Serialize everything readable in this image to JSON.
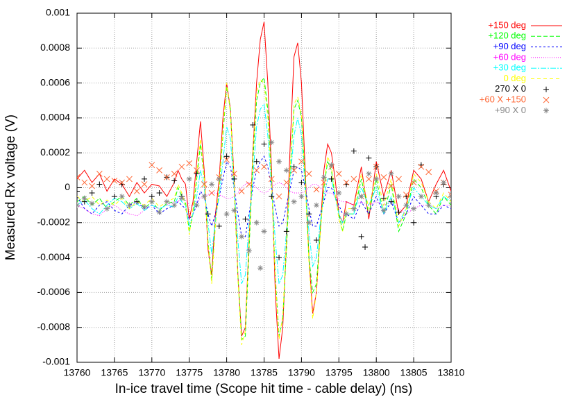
{
  "chart_data": {
    "type": "line",
    "x_label": "In-ice travel time (Scope hit time - cable delay) (ns)",
    "y_label": "Measured Rx voltage (V)",
    "xlim": [
      13760,
      13810
    ],
    "ylim": [
      -0.001,
      0.001
    ],
    "xticks": [
      13760,
      13765,
      13770,
      13775,
      13780,
      13785,
      13790,
      13795,
      13800,
      13805,
      13810
    ],
    "yticks": [
      -0.001,
      -0.0008,
      -0.0006,
      -0.0004,
      -0.0002,
      0,
      0.0002,
      0.0004,
      0.0006,
      0.0008,
      0.001
    ],
    "grid": true,
    "legend": "top-right",
    "x": [
      13760,
      13761,
      13762,
      13763,
      13764,
      13765,
      13766,
      13767,
      13768,
      13769,
      13770,
      13771,
      13772,
      13773,
      13773.5,
      13774,
      13774.5,
      13775,
      13775.5,
      13776,
      13776.5,
      13777,
      13777.5,
      13778,
      13778.5,
      13779,
      13779.5,
      13780,
      13780.5,
      13781,
      13781.5,
      13782,
      13782.5,
      13783,
      13783.5,
      13784,
      13784.5,
      13785,
      13785.5,
      13786,
      13786.5,
      13787,
      13787.5,
      13788,
      13788.5,
      13789,
      13789.5,
      13790,
      13790.5,
      13791,
      13791.5,
      13792,
      13792.5,
      13793,
      13793.5,
      13794,
      13794.5,
      13795,
      13795.5,
      13796,
      13797,
      13798,
      13799,
      13800,
      13801,
      13802,
      13803,
      13804,
      13805,
      13806,
      13807,
      13808,
      13809,
      13810
    ],
    "series": [
      {
        "name": "+150 deg",
        "color": "#ff0000",
        "dash": "none",
        "values": [
          5e-05,
          0.0001,
          3e-05,
          8e-05,
          -2e-05,
          5e-05,
          2e-05,
          -5e-05,
          3e-05,
          -3e-05,
          2e-05,
          1e-05,
          -5e-05,
          3e-05,
          0.0001,
          5e-05,
          2e-05,
          -0.00018,
          -8e-05,
          0.00015,
          0.00038,
          0.0001,
          -0.00035,
          -0.0005,
          -0.00015,
          5e-05,
          0.0004,
          0.0006,
          0.00045,
          5e-05,
          -0.0005,
          -0.00085,
          -0.0008,
          -0.0003,
          0.0002,
          0.0006,
          0.00085,
          0.00095,
          0.0006,
          0.0001,
          -0.0006,
          -0.00098,
          -0.0008,
          -0.0003,
          0.00025,
          0.00075,
          0.00083,
          0.0006,
          0.0001,
          -0.0004,
          -0.00072,
          -0.0006,
          -0.00025,
          0.0001,
          0.00025,
          0.0002,
          5e-05,
          -0.00015,
          -0.0002,
          -8e-05,
          -0.0001,
          0.00012,
          -0.00018,
          0.00015,
          -5e-05,
          0.0001,
          -0.00015,
          -0.0001,
          0.0001,
          5e-05,
          -8e-05,
          2e-05,
          0.0001,
          -2e-05
        ]
      },
      {
        "name": "+120 deg",
        "color": "#00ff00",
        "dash": "6,3",
        "values": [
          -8e-05,
          -5e-05,
          -0.0001,
          -6e-05,
          -0.00012,
          -8e-05,
          -5e-05,
          -0.0001,
          -6e-05,
          -0.00012,
          -8e-05,
          -0.00013,
          -9e-05,
          -8e-05,
          0,
          -5e-05,
          -8e-05,
          -0.00025,
          -0.00015,
          5e-05,
          0.00025,
          5e-05,
          -0.0003,
          -0.00053,
          -0.0002,
          0,
          0.0003,
          0.00058,
          0.00045,
          0,
          -0.0005,
          -0.00087,
          -0.00085,
          -0.00035,
          0.00015,
          0.0005,
          0.0006,
          0.00063,
          0.00045,
          5e-05,
          -0.0005,
          -0.00085,
          -0.00075,
          -0.00035,
          0.0001,
          0.00045,
          0.0005,
          0.0004,
          5e-05,
          -0.0004,
          -0.0006,
          -0.00055,
          -0.00025,
          0,
          0.00015,
          0.0001,
          -5e-05,
          -0.00015,
          -0.00025,
          -0.00015,
          -0.00015,
          5e-05,
          -0.00015,
          5e-05,
          -0.00015,
          2e-05,
          -0.00025,
          -0.00015,
          5e-05,
          0,
          -0.0001,
          -0.00015,
          -5e-05,
          -0.0001
        ]
      },
      {
        "name": "+90 deg",
        "color": "#0000ff",
        "dash": "3,3",
        "values": [
          -5e-05,
          -0.00012,
          -0.00015,
          -0.0001,
          -8e-05,
          -0.00013,
          -0.00015,
          -0.0001,
          -8e-05,
          -0.00012,
          -0.0001,
          -0.00015,
          -0.00012,
          -0.0001,
          -8e-05,
          -0.0001,
          -0.00012,
          -0.00018,
          -0.00015,
          -0.0001,
          -2e-05,
          -5e-05,
          -0.00015,
          -0.00022,
          -0.00015,
          -5e-05,
          5e-05,
          0.00015,
          0.00012,
          0,
          -0.00015,
          -0.00028,
          -0.00028,
          -0.00015,
          0,
          0.0001,
          0.00015,
          0.00018,
          0.00012,
          0,
          -0.00012,
          -0.00022,
          -0.0002,
          -0.0001,
          0,
          0.0001,
          0.00012,
          0.0001,
          0,
          -0.00012,
          -0.00022,
          -0.00022,
          -0.00015,
          -8e-05,
          0,
          0,
          -5e-05,
          -0.0001,
          -0.00015,
          -0.00015,
          -0.00018,
          -8e-05,
          -0.00015,
          -5e-05,
          -0.00015,
          -8e-05,
          -0.0002,
          -0.00015,
          -5e-05,
          -0.0001,
          -0.00015,
          -0.00015,
          -0.0001,
          -0.00012
        ]
      },
      {
        "name": "+60 deg",
        "color": "#ff00ff",
        "dash": "1,2",
        "values": [
          -0.0001,
          -0.00012,
          -0.00015,
          -0.00016,
          -0.00012,
          -0.0001,
          -0.00013,
          -0.00015,
          -0.00016,
          -0.00013,
          -0.0001,
          -0.00012,
          -0.0001,
          -8e-05,
          -8e-05,
          -5e-05,
          -7e-05,
          -0.0001,
          -0.0001,
          -8e-05,
          -6e-05,
          -5e-05,
          -4e-05,
          -3e-05,
          -3e-05,
          -4e-05,
          -5e-05,
          -6e-05,
          -6e-05,
          -5e-05,
          -3e-05,
          0,
          2e-05,
          3e-05,
          2e-05,
          0,
          -2e-05,
          -3e-05,
          -2e-05,
          0,
          2e-05,
          3e-05,
          2e-05,
          0,
          -2e-05,
          -3e-05,
          -3e-05,
          -3e-05,
          -2e-05,
          0,
          2e-05,
          2e-05,
          0,
          -2e-05,
          -3e-05,
          -3e-05,
          -5e-05,
          -7e-05,
          -8e-05,
          -8e-05,
          -0.0001,
          -8e-05,
          -0.0001,
          -8e-05,
          -0.0001,
          -8e-05,
          -0.00012,
          -0.00015,
          -0.00012,
          -0.0001,
          -0.0001,
          -0.00012,
          -0.0001,
          -0.0001
        ]
      },
      {
        "name": "+30 deg",
        "color": "#00ffff",
        "dash": "8,2,2,2",
        "values": [
          -0.0001,
          -7e-05,
          -0.00012,
          -0.00015,
          -0.0001,
          -6e-05,
          -8e-05,
          -0.00012,
          -9e-05,
          -0.00013,
          -0.0001,
          -0.00012,
          -0.0001,
          -0.00011,
          -5e-05,
          -8e-05,
          -0.0001,
          -0.00022,
          -0.00015,
          -5e-05,
          0.0001,
          0,
          -0.0002,
          -0.00038,
          -0.00018,
          -5e-05,
          0.00015,
          0.00035,
          0.00028,
          0,
          -0.0003,
          -0.00055,
          -0.0005,
          -0.0002,
          5e-05,
          0.00035,
          0.00045,
          0.00048,
          0.0003,
          0,
          -0.0003,
          -0.00055,
          -0.0005,
          -0.00025,
          5e-05,
          0.0003,
          0.0004,
          0.0003,
          0,
          -0.00025,
          -0.00045,
          -0.0004,
          -0.0002,
          -5e-05,
          5e-05,
          5e-05,
          -5e-05,
          -0.00015,
          -0.0002,
          -0.00015,
          -0.00015,
          0,
          -0.0001,
          0,
          -0.00015,
          -5e-05,
          -0.0002,
          -0.00012,
          0,
          -5e-05,
          -0.0001,
          -0.00012,
          -5e-05,
          -8e-05
        ]
      },
      {
        "name": "0 deg",
        "color": "#ffff00",
        "dash": "5,4",
        "values": [
          -5e-05,
          -8e-05,
          -5e-05,
          -0.0001,
          -7e-05,
          -0.0001,
          -6e-05,
          -0.00012,
          -8e-05,
          -0.0001,
          -6e-05,
          -0.00011,
          -8e-05,
          -6e-05,
          2e-05,
          -3e-05,
          -0.0001,
          -0.00027,
          -0.00012,
          8e-05,
          0.00028,
          6e-05,
          -0.00032,
          -0.00055,
          -0.00022,
          2e-05,
          0.00033,
          0.0006,
          0.00043,
          2e-05,
          -0.00052,
          -0.0009,
          -0.00082,
          -0.00032,
          0.00018,
          0.00055,
          0.00062,
          0.0006,
          0.0004,
          3e-05,
          -0.00052,
          -0.00087,
          -0.00073,
          -0.0003,
          0.00012,
          0.00048,
          0.00052,
          0.00042,
          3e-05,
          -0.00043,
          -0.00075,
          -0.0006,
          -0.00028,
          2e-05,
          0.00018,
          0.00012,
          -3e-05,
          -0.00018,
          -0.00025,
          -0.00012,
          -0.00012,
          8e-05,
          -0.00012,
          8e-05,
          -0.0001,
          5e-05,
          -0.00022,
          -0.00012,
          8e-05,
          3e-05,
          -8e-05,
          -0.00012,
          -3e-05,
          -8e-05
        ]
      },
      {
        "name": "270 X 0",
        "color": "#000000",
        "type": "scatter",
        "marker": "+",
        "x": [
          13760,
          13761,
          13762,
          13763,
          13765,
          13766,
          13768,
          13769,
          13770,
          13771,
          13772,
          13773,
          13774,
          13776,
          13777.5,
          13779,
          13780,
          13781,
          13782.5,
          13783.5,
          13784,
          13785,
          13786,
          13787,
          13788,
          13789,
          13790,
          13791,
          13792,
          13794,
          13796,
          13797,
          13798,
          13798.5,
          13799,
          13800,
          13801,
          13802,
          13803,
          13804,
          13805,
          13806,
          13808,
          13809
        ],
        "values": [
          -2e-05,
          -8e-05,
          -3e-05,
          2e-05,
          -5e-05,
          2e-05,
          -8e-05,
          5e-05,
          -5e-05,
          -3e-05,
          6e-05,
          4e-05,
          -5e-05,
          8e-05,
          -0.00015,
          -0.00022,
          0.00018,
          5e-05,
          -0.00018,
          0.00036,
          0.00015,
          0.00025,
          -5e-05,
          -0.0004,
          -0.00025,
          0.00012,
          3e-05,
          -0.00015,
          -0.0003,
          5e-05,
          2e-05,
          0.00021,
          -0.00028,
          -0.00034,
          0.00017,
          0.00012,
          -6e-05,
          -8e-05,
          -0.00014,
          -5e-05,
          -0.0002,
          0.00013,
          -5e-05,
          2e-05
        ]
      },
      {
        "name": "+60 X +150",
        "color": "#ff6633",
        "type": "scatter",
        "marker": "x",
        "x": [
          13760,
          13761,
          13762,
          13763,
          13764,
          13765,
          13766,
          13767,
          13768,
          13769,
          13770,
          13771,
          13772,
          13773,
          13774,
          13775,
          13776,
          13777,
          13778,
          13779,
          13780,
          13781,
          13782,
          13783,
          13784,
          13785,
          13786,
          13787,
          13788,
          13789,
          13790,
          13791,
          13792,
          13793,
          13794,
          13795,
          13796,
          13797,
          13798,
          13799,
          13800,
          13801,
          13802,
          13803,
          13804,
          13805,
          13806,
          13807,
          13808,
          13809,
          13810
        ],
        "values": [
          6e-05,
          3e-05,
          1e-05,
          8e-05,
          5e-05,
          4e-05,
          3e-05,
          5e-05,
          -2e-05,
          2e-05,
          0.00013,
          0.0001,
          6e-05,
          8e-05,
          0.00012,
          0.00014,
          0.0001,
          2e-05,
          -3e-05,
          6e-05,
          0.00016,
          8e-05,
          -2e-05,
          2e-05,
          0.0001,
          0.00012,
          5e-05,
          -5e-05,
          3e-05,
          0.0001,
          0.00015,
          8e-05,
          -1e-05,
          3e-05,
          0.00012,
          8e-05,
          3e-05,
          5e-05,
          -5e-05,
          5e-05,
          0.00012,
          6e-05,
          1e-05,
          5e-05,
          -4e-05,
          3e-05,
          0.00012,
          9e-05,
          -2e-05,
          3e-05,
          -4e-05
        ]
      },
      {
        "name": "+90 X 0",
        "color": "#888888",
        "type": "scatter",
        "marker": "*",
        "x": [
          13760,
          13761,
          13762,
          13764,
          13766,
          13767,
          13769,
          13770,
          13771,
          13772,
          13773,
          13774,
          13775,
          13776,
          13777,
          13778,
          13779,
          13780,
          13781,
          13782,
          13783,
          13784,
          13784.5,
          13785,
          13786,
          13787,
          13788,
          13789,
          13790,
          13791,
          13792,
          13793,
          13794,
          13795,
          13796,
          13797,
          13798,
          13799,
          13800,
          13801,
          13802,
          13803,
          13804,
          13805,
          13806,
          13807,
          13808,
          13809,
          13810
        ],
        "values": [
          -0.0001,
          -6e-05,
          -9e-05,
          -0.00012,
          -5e-05,
          -0.0001,
          -0.00011,
          -8e-05,
          -0.00014,
          -8e-05,
          -0.0001,
          -6e-05,
          5e-05,
          -0.0001,
          -5e-05,
          2e-05,
          5e-05,
          -0.00015,
          -0.00013,
          -0.00028,
          -0.00036,
          -0.0002,
          -0.00046,
          -0.00025,
          0.00026,
          0.00015,
          0.0001,
          -8e-05,
          -5e-05,
          -0.0002,
          -0.0001,
          6e-05,
          0.00013,
          -3e-05,
          -0.00015,
          -0.00012,
          -5e-05,
          8e-05,
          5e-05,
          -0.00013,
          8e-05,
          -5e-05,
          -0.0001,
          -0.00012,
          -5e-05,
          -0.0001,
          -3e-05,
          3e-05,
          -5e-05
        ]
      }
    ]
  }
}
